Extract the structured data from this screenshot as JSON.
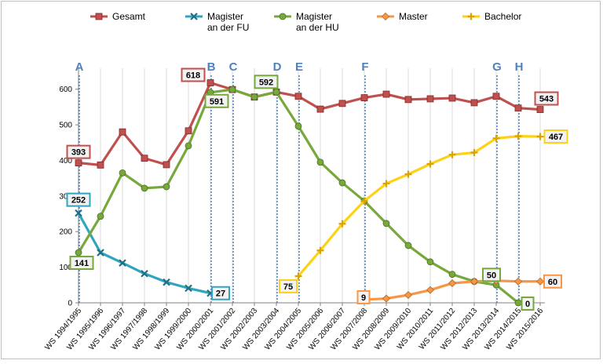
{
  "chart_data": {
    "type": "line",
    "categories": [
      "WS 1994/1995",
      "WS 1995/1996",
      "WS 1996/1997",
      "WS 1997/1998",
      "WS 1998/1999",
      "WS 1999/2000",
      "WS 2000/2001",
      "WS 2001/2002",
      "WS 2002/2003",
      "WS 2003/2004",
      "WS 2004/2005",
      "WS 2005/2006",
      "WS 2006/2007",
      "WS 2007/2008",
      "WS 2008/2009",
      "WS 2009/2010",
      "WS 2010/2011",
      "WS 2011/2012",
      "WS 2012/2013",
      "WS 2013/2014",
      "WS 2014/2015",
      "WS 2015/2016"
    ],
    "series": [
      {
        "name": "Gesamt",
        "color": "#c0504d",
        "marker": "square",
        "values": [
          393,
          387,
          480,
          406,
          388,
          483,
          618,
          599,
          578,
          592,
          580,
          544,
          560,
          576,
          586,
          571,
          573,
          575,
          562,
          580,
          547,
          543
        ]
      },
      {
        "name": "Magister an der FU",
        "color": "#31a4bf",
        "marker": "x",
        "values": [
          252,
          141,
          112,
          82,
          58,
          41,
          27,
          null,
          null,
          null,
          null,
          null,
          null,
          null,
          null,
          null,
          null,
          null,
          null,
          null,
          null,
          null
        ]
      },
      {
        "name": "Magister an der HU",
        "color": "#77a83c",
        "marker": "circle",
        "values": [
          141,
          243,
          365,
          322,
          326,
          441,
          591,
          599,
          578,
          592,
          496,
          395,
          337,
          286,
          223,
          161,
          115,
          80,
          60,
          50,
          0,
          null
        ]
      },
      {
        "name": "Master",
        "color": "#f79646",
        "marker": "diamond",
        "values": [
          null,
          null,
          null,
          null,
          null,
          null,
          null,
          null,
          null,
          null,
          null,
          null,
          null,
          9,
          12,
          22,
          36,
          55,
          60,
          62,
          60,
          60
        ]
      },
      {
        "name": "Bachelor",
        "color": "#fdd117",
        "marker": "plus",
        "values": [
          null,
          null,
          null,
          null,
          null,
          null,
          null,
          null,
          null,
          null,
          75,
          147,
          222,
          286,
          335,
          361,
          390,
          416,
          422,
          462,
          468,
          467
        ]
      }
    ],
    "legend": [
      "Gesamt",
      "Magister\nan der FU",
      "Magister\nan der HU",
      "Master",
      "Bachelor"
    ],
    "legend_position": "top",
    "y_ticks": [
      "0",
      "100",
      "200",
      "300",
      "400",
      "500",
      "600"
    ],
    "ylim": [
      0,
      650
    ],
    "grid": "vertical",
    "title": "",
    "xlabel": "",
    "ylabel": "",
    "markers": [
      {
        "label": "A",
        "category_index": 0
      },
      {
        "label": "B",
        "category_index": 6
      },
      {
        "label": "C",
        "category_index": 7
      },
      {
        "label": "D",
        "category_index": 9
      },
      {
        "label": "E",
        "category_index": 10
      },
      {
        "label": "F",
        "category_index": 13
      },
      {
        "label": "G",
        "category_index": 19
      },
      {
        "label": "H",
        "category_index": 20
      }
    ],
    "callouts": [
      {
        "text": "393",
        "series": "Gesamt",
        "category_index": 0
      },
      {
        "text": "618",
        "series": "Gesamt",
        "category_index": 6
      },
      {
        "text": "543",
        "series": "Gesamt",
        "category_index": 21
      },
      {
        "text": "252",
        "series": "Magister an der FU",
        "category_index": 0
      },
      {
        "text": "27",
        "series": "Magister an der FU",
        "category_index": 6
      },
      {
        "text": "141",
        "series": "Magister an der HU",
        "category_index": 0
      },
      {
        "text": "591",
        "series": "Magister an der HU",
        "category_index": 6
      },
      {
        "text": "592",
        "series": "Magister an der HU",
        "category_index": 9
      },
      {
        "text": "50",
        "series": "Magister an der HU",
        "category_index": 19
      },
      {
        "text": "0",
        "series": "Magister an der HU",
        "category_index": 20
      },
      {
        "text": "9",
        "series": "Master",
        "category_index": 13
      },
      {
        "text": "60",
        "series": "Master",
        "category_index": 21
      },
      {
        "text": "75",
        "series": "Bachelor",
        "category_index": 10
      },
      {
        "text": "467",
        "series": "Bachelor",
        "category_index": 21
      }
    ]
  }
}
